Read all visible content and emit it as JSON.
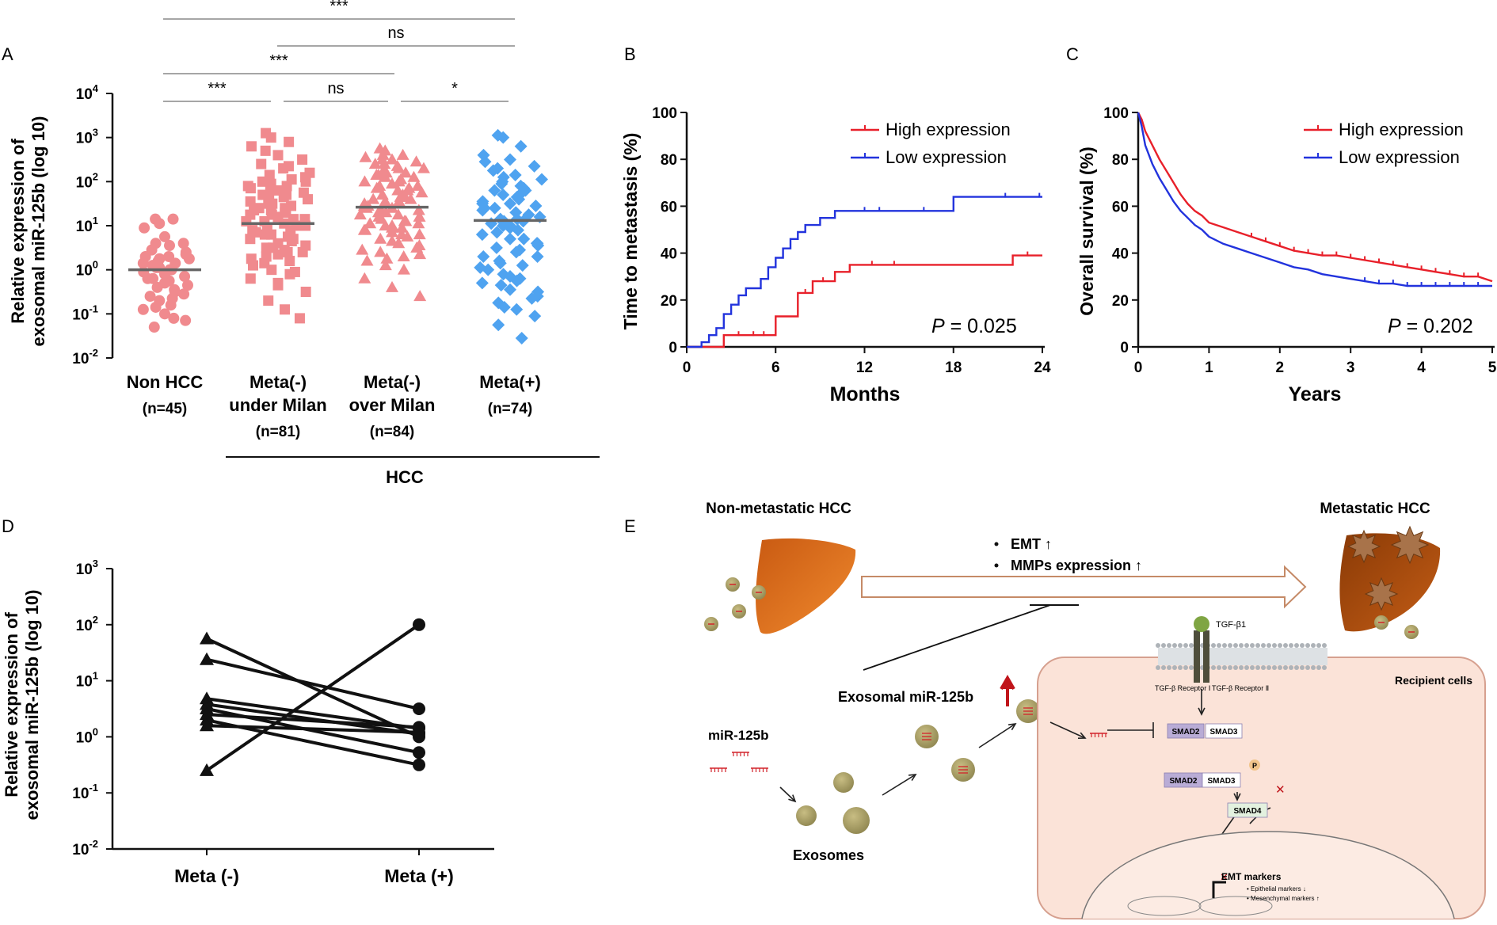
{
  "panels": {
    "A": "A",
    "B": "B",
    "C": "C",
    "D": "D",
    "E": "E"
  },
  "colors": {
    "pink": "#f08a8e",
    "blue": "#4fa3f0",
    "red": "#e8202a",
    "navy": "#2233dd",
    "black": "#111111",
    "grey": "#666666"
  },
  "chart_data": [
    {
      "id": "A",
      "type": "scatter",
      "ylabel": "Relative expression of exosomal miR-125b (log 10)",
      "yscale": "log10",
      "ylim_exp": [
        -2,
        4
      ],
      "yticks": [
        {
          "exp": "4"
        },
        {
          "exp": "3"
        },
        {
          "exp": "2"
        },
        {
          "exp": "1"
        },
        {
          "exp": "0"
        },
        {
          "exp": "-1"
        },
        {
          "exp": "-2"
        }
      ],
      "tick_base": "10",
      "groups": [
        {
          "line1": "Non  HCC",
          "line2": "",
          "n": "(n=45)",
          "median_log": 0.0,
          "marker": "circle",
          "color": "#f08a8e",
          "points": [
            1.15,
            1.05,
            1.15,
            0.95,
            0.75,
            0.6,
            0.45,
            0.3,
            0.25,
            0.2,
            0.15,
            0.1,
            0.05,
            0.0,
            -0.05,
            -0.1,
            -0.15,
            -0.2,
            -0.25,
            -0.35,
            -0.4,
            -0.5,
            -0.6,
            -0.7,
            -0.8,
            -0.9,
            -1.0,
            -1.15,
            -1.3,
            0.55,
            0.35,
            0.05,
            -0.45,
            -0.2,
            0.25,
            -0.65,
            0.15,
            -0.3,
            0.4,
            -0.85,
            0.0,
            -0.55,
            0.6,
            -1.1,
            0.3
          ]
        },
        {
          "line1": "Meta(-)",
          "line2": "under Milan",
          "n": "(n=81)",
          "median_log": 1.05,
          "marker": "square",
          "color": "#f08a8e",
          "points": [
            3.1,
            3.0,
            2.9,
            2.8,
            2.6,
            2.5,
            2.4,
            2.3,
            2.2,
            2.15,
            2.05,
            2.0,
            1.95,
            1.9,
            1.85,
            1.8,
            1.75,
            1.7,
            1.65,
            1.6,
            1.5,
            1.45,
            1.4,
            1.35,
            1.3,
            1.25,
            1.2,
            1.15,
            1.1,
            1.05,
            1.0,
            0.95,
            0.9,
            0.85,
            0.8,
            0.75,
            0.7,
            0.6,
            0.55,
            0.5,
            0.45,
            0.4,
            0.3,
            0.2,
            0.1,
            0.0,
            -0.1,
            -0.2,
            -0.35,
            -0.5,
            -0.7,
            -0.9,
            -1.1,
            2.7,
            2.35,
            1.55,
            1.25,
            0.65,
            0.25,
            -0.3,
            2.0,
            1.8,
            1.4,
            1.0,
            0.8,
            0.4,
            1.9,
            1.5,
            1.15,
            0.9,
            0.35,
            2.1,
            1.6,
            1.3,
            0.7,
            0.15,
            1.7,
            1.1,
            0.5,
            -0.05,
            1.35
          ]
        },
        {
          "line1": "Meta(-)",
          "line2": "over Milan",
          "n": "(n=84)",
          "median_log": 1.42,
          "marker": "triangle",
          "color": "#f08a8e",
          "points": [
            2.75,
            2.7,
            2.6,
            2.55,
            2.5,
            2.45,
            2.4,
            2.35,
            2.3,
            2.25,
            2.2,
            2.15,
            2.1,
            2.05,
            2.0,
            1.95,
            1.9,
            1.85,
            1.8,
            1.75,
            1.7,
            1.65,
            1.6,
            1.55,
            1.5,
            1.45,
            1.4,
            1.35,
            1.3,
            1.25,
            1.2,
            1.15,
            1.1,
            1.05,
            1.0,
            0.95,
            0.9,
            0.85,
            0.8,
            0.7,
            0.6,
            0.5,
            0.4,
            0.3,
            0.2,
            0.1,
            0.0,
            -0.2,
            -0.4,
            -0.6,
            2.5,
            2.3,
            2.1,
            1.9,
            1.7,
            1.5,
            1.3,
            1.1,
            0.9,
            0.65,
            0.35,
            2.4,
            2.0,
            1.6,
            1.2,
            0.8,
            0.45,
            2.2,
            1.8,
            1.4,
            1.0,
            0.55,
            2.6,
            1.55,
            0.75,
            2.15,
            1.65,
            1.25,
            0.25,
            1.85,
            1.45,
            0.95,
            1.05,
            1.35
          ]
        },
        {
          "line1": "Meta(+)",
          "line2": "",
          "n": "(n=74)",
          "median_log": 1.12,
          "marker": "diamond",
          "color": "#4fa3f0",
          "points": [
            3.05,
            3.0,
            2.8,
            2.6,
            2.5,
            2.35,
            2.25,
            2.15,
            2.05,
            1.95,
            1.85,
            1.8,
            1.7,
            1.6,
            1.55,
            1.5,
            1.45,
            1.4,
            1.3,
            1.2,
            1.15,
            1.1,
            1.05,
            1.0,
            0.9,
            0.8,
            0.7,
            0.6,
            0.5,
            0.4,
            0.3,
            0.2,
            0.1,
            0.0,
            -0.1,
            -0.2,
            -0.3,
            -0.45,
            -0.6,
            -0.75,
            -0.9,
            -1.05,
            -1.25,
            -1.55,
            2.45,
            2.1,
            1.75,
            1.35,
            0.95,
            0.55,
            0.15,
            -0.25,
            -0.65,
            2.3,
            1.9,
            1.5,
            1.1,
            0.7,
            0.3,
            -0.15,
            -0.5,
            2.0,
            1.65,
            1.25,
            0.85,
            0.45,
            0.05,
            -0.85,
            1.8,
            1.4,
            1.0,
            0.6,
            -0.35,
            1.15
          ]
        }
      ],
      "brackets": [
        {
          "from": 0,
          "to": 3,
          "label": "***",
          "level": 4
        },
        {
          "from": 1,
          "to": 3,
          "label": "ns",
          "level": 3
        },
        {
          "from": 0,
          "to": 2,
          "label": "***",
          "level": 2
        },
        {
          "from": 0,
          "to": 1,
          "label": "***",
          "level": 1
        },
        {
          "from": 1,
          "to": 2,
          "label": "ns",
          "level": 1
        },
        {
          "from": 2,
          "to": 3,
          "label": "*",
          "level": 1
        }
      ],
      "subgroup_label": "HCC"
    },
    {
      "id": "B",
      "type": "line",
      "title": "",
      "xlabel": "Months",
      "ylabel": "Time to metastasis (%)",
      "xlim": [
        0,
        24
      ],
      "ylim": [
        0,
        100
      ],
      "xticks": [
        0,
        6,
        12,
        18,
        24
      ],
      "yticks": [
        0,
        20,
        40,
        60,
        80,
        100
      ],
      "legend": "top-right",
      "annotation": {
        "p": "P",
        "eq": " = 0.025"
      },
      "series": [
        {
          "name": "High expression",
          "color": "#e8202a",
          "x": [
            0,
            2.5,
            2.5,
            6,
            6,
            7.5,
            7.5,
            8.5,
            8.5,
            10,
            10,
            11,
            11,
            22,
            22,
            24
          ],
          "y": [
            0,
            0,
            5,
            5,
            13,
            13,
            23,
            23,
            28,
            28,
            32,
            32,
            35,
            35,
            39,
            39
          ],
          "censor_x": [
            3.5,
            4.5,
            5.2,
            8.0,
            9.2,
            12.5,
            14,
            23
          ]
        },
        {
          "name": "Low expression",
          "color": "#2233dd",
          "x": [
            0,
            1,
            1,
            1.5,
            1.5,
            2,
            2,
            2.5,
            2.5,
            3,
            3,
            3.5,
            3.5,
            4,
            4,
            5,
            5,
            5.5,
            5.5,
            6,
            6,
            6.5,
            6.5,
            7,
            7,
            7.5,
            7.5,
            8,
            8,
            9,
            9,
            10,
            10,
            11,
            11,
            18,
            18,
            24
          ],
          "y": [
            0,
            0,
            2,
            2,
            5,
            5,
            8,
            8,
            14,
            14,
            18,
            18,
            22,
            22,
            25,
            25,
            29,
            29,
            34,
            34,
            38,
            38,
            42,
            42,
            46,
            46,
            49,
            49,
            52,
            52,
            55,
            55,
            58,
            58,
            58,
            58,
            64,
            64
          ],
          "censor_x": [
            12,
            13,
            16,
            21.5,
            23.8
          ]
        }
      ]
    },
    {
      "id": "C",
      "type": "line",
      "title": "",
      "xlabel": "Years",
      "ylabel": "Overall survival (%)",
      "xlim": [
        0,
        5
      ],
      "ylim": [
        0,
        100
      ],
      "xticks": [
        0,
        1,
        2,
        3,
        4,
        5
      ],
      "yticks": [
        0,
        20,
        40,
        60,
        80,
        100
      ],
      "legend": "top-right",
      "annotation": {
        "p": "P",
        "eq": " = 0.202"
      },
      "series": [
        {
          "name": "High expression",
          "color": "#e8202a",
          "x": [
            0,
            0.05,
            0.1,
            0.2,
            0.3,
            0.4,
            0.5,
            0.6,
            0.7,
            0.8,
            0.9,
            1.0,
            1.2,
            1.4,
            1.6,
            1.8,
            2.0,
            2.2,
            2.4,
            2.6,
            2.8,
            3.0,
            3.2,
            3.4,
            3.6,
            3.8,
            4.0,
            4.2,
            4.4,
            4.6,
            4.8,
            5.0
          ],
          "y": [
            100,
            97,
            92,
            86,
            80,
            75,
            70,
            65,
            61,
            58,
            56,
            53,
            51,
            49,
            47,
            45,
            43,
            41,
            40,
            39,
            39,
            38,
            37,
            36,
            35,
            34,
            33,
            32,
            31,
            30,
            30,
            28
          ],
          "censor_x": [
            1.6,
            1.8,
            2.0,
            2.2,
            2.4,
            2.6,
            2.8,
            3.0,
            3.2,
            3.4,
            3.6,
            3.8,
            4.0,
            4.2,
            4.4,
            4.6,
            4.8
          ]
        },
        {
          "name": "Low expression",
          "color": "#2233dd",
          "x": [
            0,
            0.05,
            0.1,
            0.2,
            0.3,
            0.4,
            0.5,
            0.6,
            0.7,
            0.8,
            0.9,
            1.0,
            1.2,
            1.4,
            1.6,
            1.8,
            2.0,
            2.2,
            2.4,
            2.6,
            2.8,
            3.0,
            3.2,
            3.4,
            3.6,
            3.8,
            4.0,
            4.2,
            4.4,
            4.6,
            4.8,
            5.0
          ],
          "y": [
            100,
            94,
            86,
            78,
            72,
            67,
            62,
            58,
            55,
            52,
            50,
            47,
            44,
            42,
            40,
            38,
            36,
            34,
            33,
            31,
            30,
            29,
            28,
            27,
            27,
            26,
            26,
            26,
            26,
            26,
            26,
            26
          ],
          "censor_x": [
            3.2,
            3.4,
            3.6,
            3.8,
            4.0,
            4.2,
            4.4,
            4.6,
            4.8
          ]
        }
      ]
    },
    {
      "id": "D",
      "type": "line",
      "ylabel": "Relative expression of exosomal miR-125b (log 10)",
      "yscale": "log10",
      "ylim_exp": [
        -2,
        3
      ],
      "yticks": [
        {
          "exp": "3"
        },
        {
          "exp": "2"
        },
        {
          "exp": "1"
        },
        {
          "exp": "0"
        },
        {
          "exp": "-1"
        },
        {
          "exp": "-2"
        }
      ],
      "tick_base": "10",
      "categories": [
        "Meta (-)",
        "Meta (+)"
      ],
      "pairs": [
        [
          1.75,
          0.0
        ],
        [
          1.38,
          0.5
        ],
        [
          0.68,
          0.15
        ],
        [
          0.58,
          0.05
        ],
        [
          0.5,
          -0.28
        ],
        [
          0.4,
          0.17
        ],
        [
          0.3,
          -0.5
        ],
        [
          0.2,
          0.08
        ],
        [
          -0.6,
          2.0
        ]
      ]
    }
  ],
  "diagram": {
    "non_metastatic": "Non-metastatic  HCC",
    "metastatic": "Metastatic HCC",
    "bullet_1": "EMT ↑",
    "bullet_2": "MMPs expression ↑",
    "exosomal": "Exosomal miR-125b",
    "mir": "miR-125b",
    "exosomes": "Exosomes",
    "recipient": "Recipient cells",
    "tgf": "TGF-β1",
    "receptor_1": "TGF-β Receptor Ⅰ",
    "receptor_2": "TGF-β Receptor Ⅱ",
    "smad2": "SMAD2",
    "smad3": "SMAD3",
    "smad4": "SMAD4",
    "p": "P",
    "emt_markers": "EMT markers",
    "epithelial": "•  Epithelial markers ↓",
    "mesenchymal": "•  Mesenchymal markers ↑"
  }
}
